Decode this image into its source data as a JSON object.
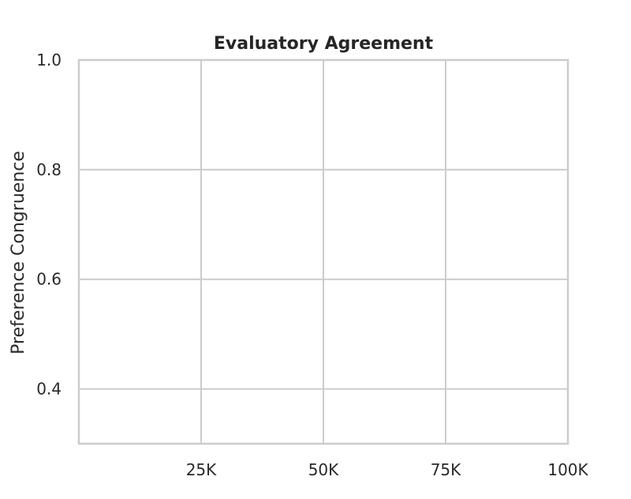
{
  "chart_data": {
    "type": "line",
    "title": "Evaluatory Agreement",
    "xlabel": "",
    "ylabel": "Preference Congruence",
    "xlim": [
      0,
      100000
    ],
    "ylim": [
      0.3,
      1.0
    ],
    "x_ticks": [
      25000,
      50000,
      75000,
      100000
    ],
    "x_tick_labels": [
      "25K",
      "50K",
      "75K",
      "100K"
    ],
    "y_ticks": [
      0.4,
      0.6,
      0.8,
      1.0
    ],
    "y_tick_labels": [
      "0.4",
      "0.6",
      "0.8",
      "1.0"
    ],
    "grid": true,
    "series": []
  },
  "colors": {
    "grid": "#cccccc",
    "frame": "#cccccc",
    "text": "#262626"
  }
}
